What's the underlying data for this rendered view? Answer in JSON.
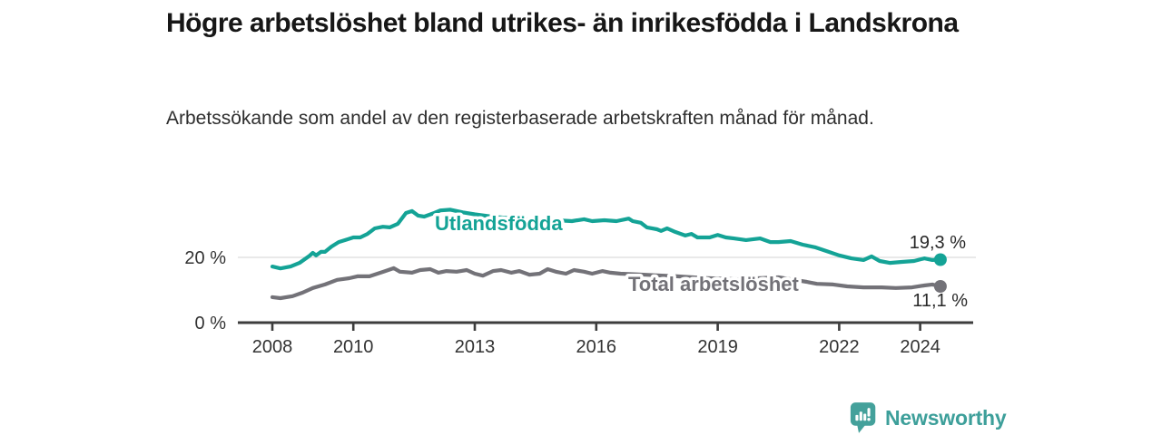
{
  "chart_data": {
    "type": "line",
    "title": "Högre arbetslöshet bland utrikes- än inrikesfödda i Landskrona",
    "subtitle": "Arbetssökande som andel av den registerbaserade arbetskraften månad för månad.",
    "xlabel": "",
    "ylabel": "",
    "unit": "%",
    "xlim": [
      2008,
      2024.6
    ],
    "ylim": [
      0,
      36
    ],
    "grid": "horizontal, only at 20 %",
    "legend_position": "inline labels on lines, end-value labels at right",
    "x_ticks": [
      2008,
      2010,
      2013,
      2016,
      2019,
      2022,
      2024
    ],
    "x_tick_labels": [
      "2008",
      "2010",
      "2013",
      "2016",
      "2019",
      "2022",
      "2024"
    ],
    "y_ticks": [
      {
        "value": 0,
        "label": "0 %"
      },
      {
        "value": 20,
        "label": "20 %"
      }
    ],
    "series": [
      {
        "name": "Utlandsfödda",
        "color": "#14a396",
        "end_label": "19,3 %",
        "end_value": 19.3,
        "points": [
          [
            2008.0,
            17.2
          ],
          [
            2008.2,
            16.6
          ],
          [
            2008.45,
            17.2
          ],
          [
            2008.67,
            18.3
          ],
          [
            2008.9,
            20.3
          ],
          [
            2009.0,
            21.4
          ],
          [
            2009.08,
            20.6
          ],
          [
            2009.2,
            21.7
          ],
          [
            2009.3,
            21.7
          ],
          [
            2009.46,
            23.3
          ],
          [
            2009.64,
            24.7
          ],
          [
            2009.8,
            25.3
          ],
          [
            2010.0,
            26.1
          ],
          [
            2010.17,
            26.1
          ],
          [
            2010.35,
            27.2
          ],
          [
            2010.53,
            28.9
          ],
          [
            2010.73,
            29.4
          ],
          [
            2010.9,
            29.2
          ],
          [
            2011.1,
            30.3
          ],
          [
            2011.3,
            33.6
          ],
          [
            2011.45,
            34.2
          ],
          [
            2011.6,
            32.8
          ],
          [
            2011.75,
            32.5
          ],
          [
            2012.0,
            33.6
          ],
          [
            2012.15,
            34.4
          ],
          [
            2012.4,
            34.6
          ],
          [
            2012.7,
            33.8
          ],
          [
            2013.0,
            33.2
          ],
          [
            2013.5,
            32.4
          ],
          [
            2014.0,
            31.9
          ],
          [
            2014.5,
            31.5
          ],
          [
            2015.0,
            31.4
          ],
          [
            2015.4,
            31.1
          ],
          [
            2015.7,
            31.7
          ],
          [
            2015.9,
            31.1
          ],
          [
            2016.2,
            31.4
          ],
          [
            2016.5,
            31.1
          ],
          [
            2016.8,
            31.9
          ],
          [
            2016.9,
            31.1
          ],
          [
            2017.1,
            30.6
          ],
          [
            2017.25,
            29.2
          ],
          [
            2017.5,
            28.6
          ],
          [
            2017.6,
            28.1
          ],
          [
            2017.75,
            28.9
          ],
          [
            2017.95,
            27.8
          ],
          [
            2018.2,
            26.7
          ],
          [
            2018.35,
            27.2
          ],
          [
            2018.5,
            26.1
          ],
          [
            2018.8,
            26.1
          ],
          [
            2019.0,
            26.9
          ],
          [
            2019.2,
            26.1
          ],
          [
            2019.4,
            25.8
          ],
          [
            2019.7,
            25.3
          ],
          [
            2020.05,
            25.8
          ],
          [
            2020.3,
            24.7
          ],
          [
            2020.5,
            24.7
          ],
          [
            2020.8,
            25.0
          ],
          [
            2021.1,
            23.9
          ],
          [
            2021.4,
            23.1
          ],
          [
            2021.7,
            21.9
          ],
          [
            2022.0,
            20.6
          ],
          [
            2022.3,
            19.7
          ],
          [
            2022.6,
            19.2
          ],
          [
            2022.8,
            20.3
          ],
          [
            2023.0,
            18.9
          ],
          [
            2023.25,
            18.3
          ],
          [
            2023.55,
            18.6
          ],
          [
            2023.85,
            18.9
          ],
          [
            2024.1,
            19.7
          ],
          [
            2024.3,
            19.2
          ],
          [
            2024.5,
            19.3
          ]
        ]
      },
      {
        "name": "Total arbetslöshet",
        "color": "#737278",
        "end_label": "11,1 %",
        "end_value": 11.1,
        "points": [
          [
            2008.0,
            7.8
          ],
          [
            2008.2,
            7.5
          ],
          [
            2008.5,
            8.1
          ],
          [
            2008.75,
            9.2
          ],
          [
            2009.0,
            10.6
          ],
          [
            2009.3,
            11.7
          ],
          [
            2009.6,
            13.1
          ],
          [
            2009.9,
            13.6
          ],
          [
            2010.1,
            14.2
          ],
          [
            2010.4,
            14.2
          ],
          [
            2010.75,
            15.6
          ],
          [
            2011.0,
            16.7
          ],
          [
            2011.15,
            15.6
          ],
          [
            2011.45,
            15.3
          ],
          [
            2011.65,
            16.1
          ],
          [
            2011.9,
            16.4
          ],
          [
            2012.1,
            15.3
          ],
          [
            2012.3,
            15.8
          ],
          [
            2012.55,
            15.6
          ],
          [
            2012.8,
            16.1
          ],
          [
            2013.0,
            15.0
          ],
          [
            2013.2,
            14.4
          ],
          [
            2013.45,
            15.8
          ],
          [
            2013.65,
            16.1
          ],
          [
            2013.9,
            15.3
          ],
          [
            2014.1,
            15.8
          ],
          [
            2014.35,
            14.7
          ],
          [
            2014.6,
            15.0
          ],
          [
            2014.8,
            16.4
          ],
          [
            2015.0,
            15.6
          ],
          [
            2015.25,
            15.0
          ],
          [
            2015.45,
            16.1
          ],
          [
            2015.7,
            15.6
          ],
          [
            2015.9,
            15.0
          ],
          [
            2016.15,
            15.8
          ],
          [
            2016.35,
            15.3
          ],
          [
            2016.6,
            15.0
          ],
          [
            2017.0,
            14.8
          ],
          [
            2017.5,
            14.5
          ],
          [
            2018.0,
            14.2
          ],
          [
            2018.5,
            13.8
          ],
          [
            2019.0,
            13.5
          ],
          [
            2019.5,
            13.3
          ],
          [
            2020.0,
            13.6
          ],
          [
            2020.5,
            13.9
          ],
          [
            2021.0,
            12.9
          ],
          [
            2021.2,
            12.5
          ],
          [
            2021.45,
            11.9
          ],
          [
            2021.85,
            11.7
          ],
          [
            2022.2,
            11.1
          ],
          [
            2022.6,
            10.8
          ],
          [
            2023.05,
            10.8
          ],
          [
            2023.4,
            10.6
          ],
          [
            2023.8,
            10.8
          ],
          [
            2024.1,
            11.4
          ],
          [
            2024.3,
            11.7
          ],
          [
            2024.5,
            11.1
          ]
        ]
      }
    ]
  },
  "footer": {
    "brand": "Newsworthy",
    "brand_color": "#3d9f9a",
    "logo_icon": "newsworthy-speech-bubble-bar-chart"
  }
}
